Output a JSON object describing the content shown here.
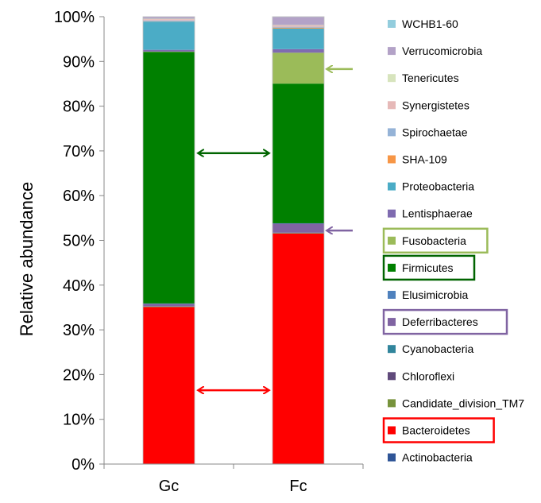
{
  "chart_data": {
    "type": "bar",
    "stacked": true,
    "title": "",
    "xlabel": "",
    "ylabel": "Relative abundance",
    "ylim": [
      0,
      100
    ],
    "ytick_labels": [
      "0%",
      "10%",
      "20%",
      "30%",
      "40%",
      "50%",
      "60%",
      "70%",
      "80%",
      "90%",
      "100%"
    ],
    "categories": [
      "Gc",
      "Fc"
    ],
    "legend_position": "right",
    "series": [
      {
        "name": "Actinobacteria",
        "color": "#2f5597",
        "values": [
          0.1,
          0.1
        ],
        "highlight": null
      },
      {
        "name": "Bacteroidetes",
        "color": "#ff0000",
        "values": [
          35.0,
          51.4
        ],
        "highlight": "#ff0000"
      },
      {
        "name": "Candidate_division_TM7",
        "color": "#77933c",
        "values": [
          0.1,
          0.1
        ],
        "highlight": null
      },
      {
        "name": "Chloroflexi",
        "color": "#604a7b",
        "values": [
          0.05,
          0.05
        ],
        "highlight": null
      },
      {
        "name": "Cyanobacteria",
        "color": "#31859c",
        "values": [
          0.05,
          0.05
        ],
        "highlight": null
      },
      {
        "name": "Deferribacteres",
        "color": "#8064a2",
        "values": [
          0.5,
          2.0
        ],
        "highlight": "#8064a2"
      },
      {
        "name": "Elusimicrobia",
        "color": "#4f81bd",
        "values": [
          0.1,
          0.1
        ],
        "highlight": null
      },
      {
        "name": "Firmicutes",
        "color": "#008000",
        "values": [
          56.2,
          31.2
        ],
        "highlight": "#006400"
      },
      {
        "name": "Fusobacteria",
        "color": "#9bbb59",
        "values": [
          0.1,
          6.9
        ],
        "highlight": "#9bbb59"
      },
      {
        "name": "Lentisphaerae",
        "color": "#7f6bb0",
        "values": [
          0.4,
          0.8
        ],
        "highlight": null
      },
      {
        "name": "Proteobacteria",
        "color": "#4bacc6",
        "values": [
          6.3,
          4.6
        ],
        "highlight": null
      },
      {
        "name": "SHA-109",
        "color": "#f79646",
        "values": [
          0.05,
          0.2
        ],
        "highlight": null
      },
      {
        "name": "Spirochaetae",
        "color": "#95b3d7",
        "values": [
          0.2,
          0.2
        ],
        "highlight": null
      },
      {
        "name": "Synergistetes",
        "color": "#e6b9b8",
        "values": [
          0.3,
          0.3
        ],
        "highlight": null
      },
      {
        "name": "Tenericutes",
        "color": "#d7e4bd",
        "values": [
          0.1,
          0.1
        ],
        "highlight": null
      },
      {
        "name": "Verrucomicrobia",
        "color": "#b3a2c7",
        "values": [
          0.4,
          1.8
        ],
        "highlight": null
      },
      {
        "name": "WCHB1-60",
        "color": "#93cddd",
        "values": [
          0.05,
          0.05
        ],
        "highlight": null
      }
    ],
    "annotations": [
      {
        "type": "double-arrow",
        "between": [
          "Gc",
          "Fc"
        ],
        "series": "Firmicutes",
        "value": 69.5,
        "color": "#006400"
      },
      {
        "type": "double-arrow",
        "between": [
          "Gc",
          "Fc"
        ],
        "series": "Bacteroidetes",
        "value": 16.5,
        "color": "#ff0000"
      },
      {
        "type": "arrow",
        "target": "Fc",
        "series": "Fusobacteria",
        "value": 88.3,
        "color": "#9bbb59"
      },
      {
        "type": "arrow",
        "target": "Fc",
        "series": "Deferribacteres",
        "value": 52.2,
        "color": "#8064a2"
      }
    ]
  }
}
